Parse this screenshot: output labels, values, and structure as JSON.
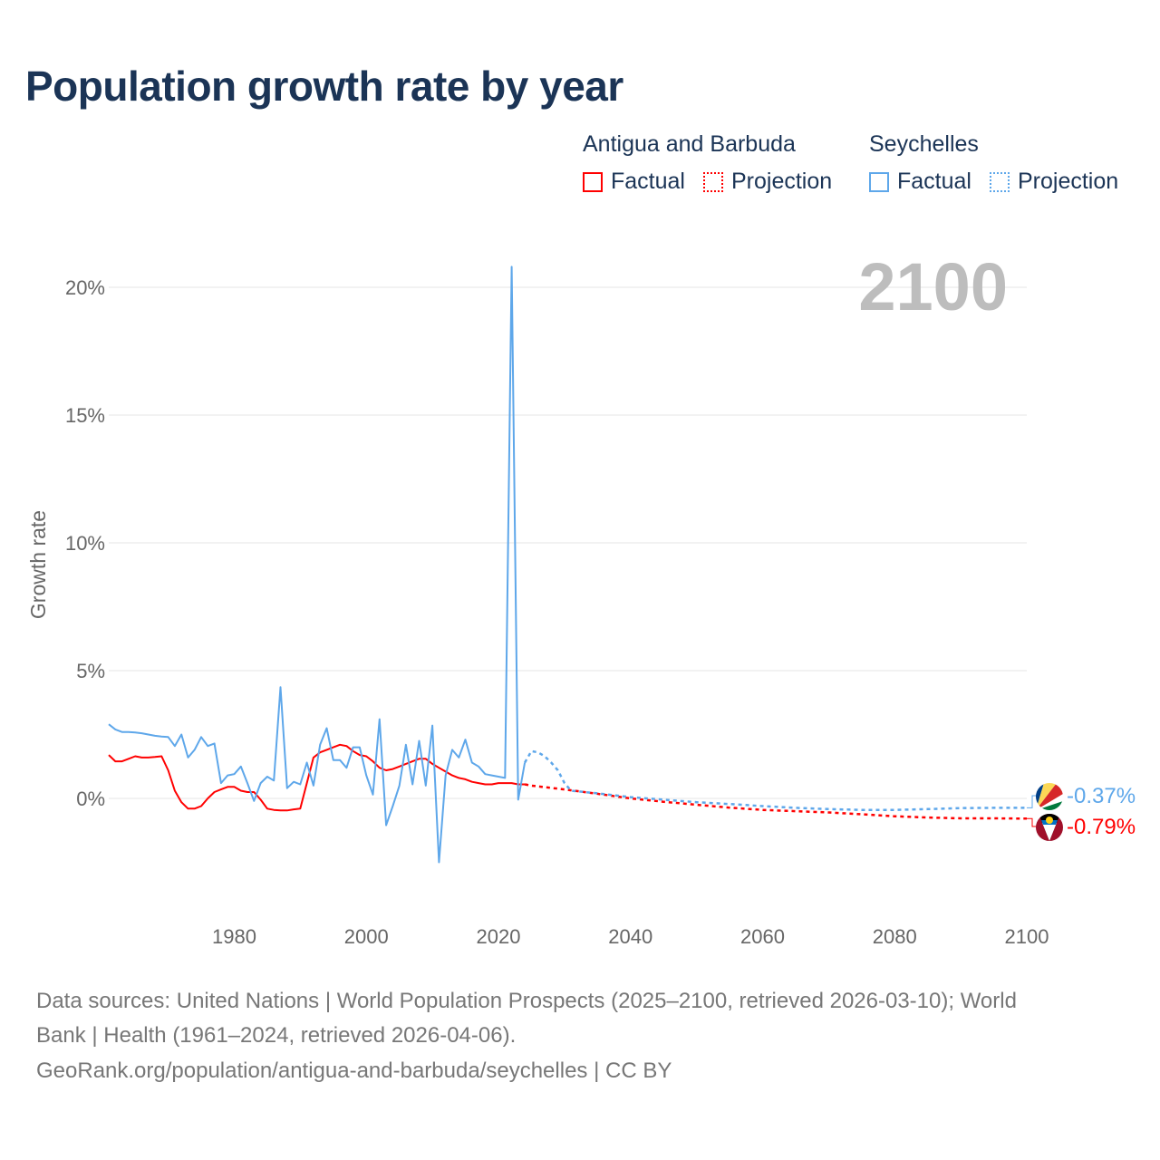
{
  "title": "Population growth rate by year",
  "legend": {
    "groups": [
      {
        "name": "Antigua and Barbuda",
        "factual": "Factual",
        "projection": "Projection",
        "color": "#ff0000"
      },
      {
        "name": "Seychelles",
        "factual": "Factual",
        "projection": "Projection",
        "color": "#5ea7ea"
      }
    ]
  },
  "year_display": "2100",
  "footer": {
    "line1": "Data sources: United Nations | World Population Prospects (2025–2100, retrieved 2026-03-10); World",
    "line2": "Bank | Health (1961–2024, retrieved 2026-04-06).",
    "line3": "GeoRank.org/population/antigua-and-barbuda/seychelles | CC BY"
  },
  "chart_data": {
    "type": "line",
    "title": "Population growth rate by year",
    "xlabel": "",
    "ylabel": "Growth rate",
    "xlim": [
      1961,
      2100
    ],
    "ylim": [
      -4.3,
      21.5
    ],
    "x_ticks": [
      1980,
      2000,
      2020,
      2040,
      2060,
      2080,
      2100
    ],
    "y_ticks": [
      0,
      5,
      10,
      15,
      20
    ],
    "y_tick_labels": [
      "0%",
      "5%",
      "10%",
      "15%",
      "20%"
    ],
    "grid": true,
    "legend_position": "top-right",
    "series": [
      {
        "name": "Antigua and Barbuda",
        "color": "#ff0000",
        "end_label": "-0.79%",
        "factual": {
          "x": [
            1961,
            1962,
            1963,
            1964,
            1965,
            1966,
            1967,
            1968,
            1969,
            1970,
            1971,
            1972,
            1973,
            1974,
            1975,
            1976,
            1977,
            1978,
            1979,
            1980,
            1981,
            1982,
            1983,
            1984,
            1985,
            1986,
            1987,
            1988,
            1989,
            1990,
            1991,
            1992,
            1993,
            1994,
            1995,
            1996,
            1997,
            1998,
            1999,
            2000,
            2001,
            2002,
            2003,
            2004,
            2005,
            2006,
            2007,
            2008,
            2009,
            2010,
            2011,
            2012,
            2013,
            2014,
            2015,
            2016,
            2017,
            2018,
            2019,
            2020,
            2021,
            2022,
            2023,
            2024
          ],
          "y": [
            1.7,
            1.45,
            1.45,
            1.55,
            1.65,
            1.6,
            1.6,
            1.62,
            1.65,
            1.1,
            0.3,
            -0.15,
            -0.4,
            -0.4,
            -0.3,
            0.0,
            0.25,
            0.35,
            0.45,
            0.45,
            0.3,
            0.25,
            0.25,
            -0.05,
            -0.4,
            -0.45,
            -0.47,
            -0.47,
            -0.43,
            -0.4,
            0.6,
            1.6,
            1.8,
            1.9,
            2.0,
            2.1,
            2.05,
            1.85,
            1.7,
            1.65,
            1.45,
            1.2,
            1.1,
            1.15,
            1.25,
            1.35,
            1.45,
            1.55,
            1.55,
            1.35,
            1.2,
            1.05,
            0.9,
            0.8,
            0.75,
            0.65,
            0.6,
            0.55,
            0.55,
            0.6,
            0.6,
            0.6,
            0.55,
            0.55
          ]
        },
        "projection": {
          "x": [
            2024,
            2025,
            2030,
            2035,
            2040,
            2045,
            2050,
            2055,
            2060,
            2065,
            2070,
            2075,
            2080,
            2085,
            2090,
            2095,
            2100
          ],
          "y": [
            0.55,
            0.5,
            0.35,
            0.18,
            0.0,
            -0.13,
            -0.25,
            -0.36,
            -0.45,
            -0.5,
            -0.55,
            -0.62,
            -0.7,
            -0.75,
            -0.78,
            -0.78,
            -0.79
          ]
        }
      },
      {
        "name": "Seychelles",
        "color": "#5ea7ea",
        "end_label": "-0.37%",
        "factual": {
          "x": [
            1961,
            1962,
            1963,
            1964,
            1965,
            1966,
            1967,
            1968,
            1969,
            1970,
            1971,
            1972,
            1973,
            1974,
            1975,
            1976,
            1977,
            1978,
            1979,
            1980,
            1981,
            1982,
            1983,
            1984,
            1985,
            1986,
            1987,
            1988,
            1989,
            1990,
            1991,
            1992,
            1993,
            1994,
            1995,
            1996,
            1997,
            1998,
            1999,
            2000,
            2001,
            2002,
            2003,
            2004,
            2005,
            2006,
            2007,
            2008,
            2009,
            2010,
            2011,
            2012,
            2013,
            2014,
            2015,
            2016,
            2017,
            2018,
            2019,
            2020,
            2021,
            2022,
            2023,
            2024
          ],
          "y": [
            2.9,
            2.7,
            2.6,
            2.6,
            2.58,
            2.55,
            2.5,
            2.45,
            2.42,
            2.4,
            2.05,
            2.5,
            1.6,
            1.9,
            2.4,
            2.05,
            2.15,
            0.6,
            0.9,
            0.95,
            1.25,
            0.6,
            -0.1,
            0.6,
            0.85,
            0.7,
            4.35,
            0.4,
            0.65,
            0.55,
            1.4,
            0.5,
            2.1,
            2.75,
            1.5,
            1.5,
            1.2,
            2.0,
            2.0,
            0.9,
            0.15,
            3.1,
            -1.05,
            -0.3,
            0.5,
            2.1,
            0.55,
            2.25,
            0.5,
            2.85,
            -2.5,
            0.9,
            1.9,
            1.6,
            2.3,
            1.4,
            1.25,
            0.95,
            0.9,
            0.85,
            0.8,
            20.8,
            -0.05,
            1.4
          ]
        },
        "projection": {
          "x": [
            2024,
            2025,
            2026,
            2027,
            2028,
            2029,
            2030,
            2031,
            2035,
            2040,
            2045,
            2050,
            2055,
            2060,
            2065,
            2070,
            2075,
            2080,
            2085,
            2090,
            2095,
            2100
          ],
          "y": [
            1.4,
            1.85,
            1.8,
            1.65,
            1.4,
            1.1,
            0.6,
            0.3,
            0.2,
            0.05,
            -0.05,
            -0.15,
            -0.22,
            -0.3,
            -0.37,
            -0.42,
            -0.45,
            -0.45,
            -0.42,
            -0.38,
            -0.37,
            -0.37
          ]
        }
      }
    ]
  }
}
